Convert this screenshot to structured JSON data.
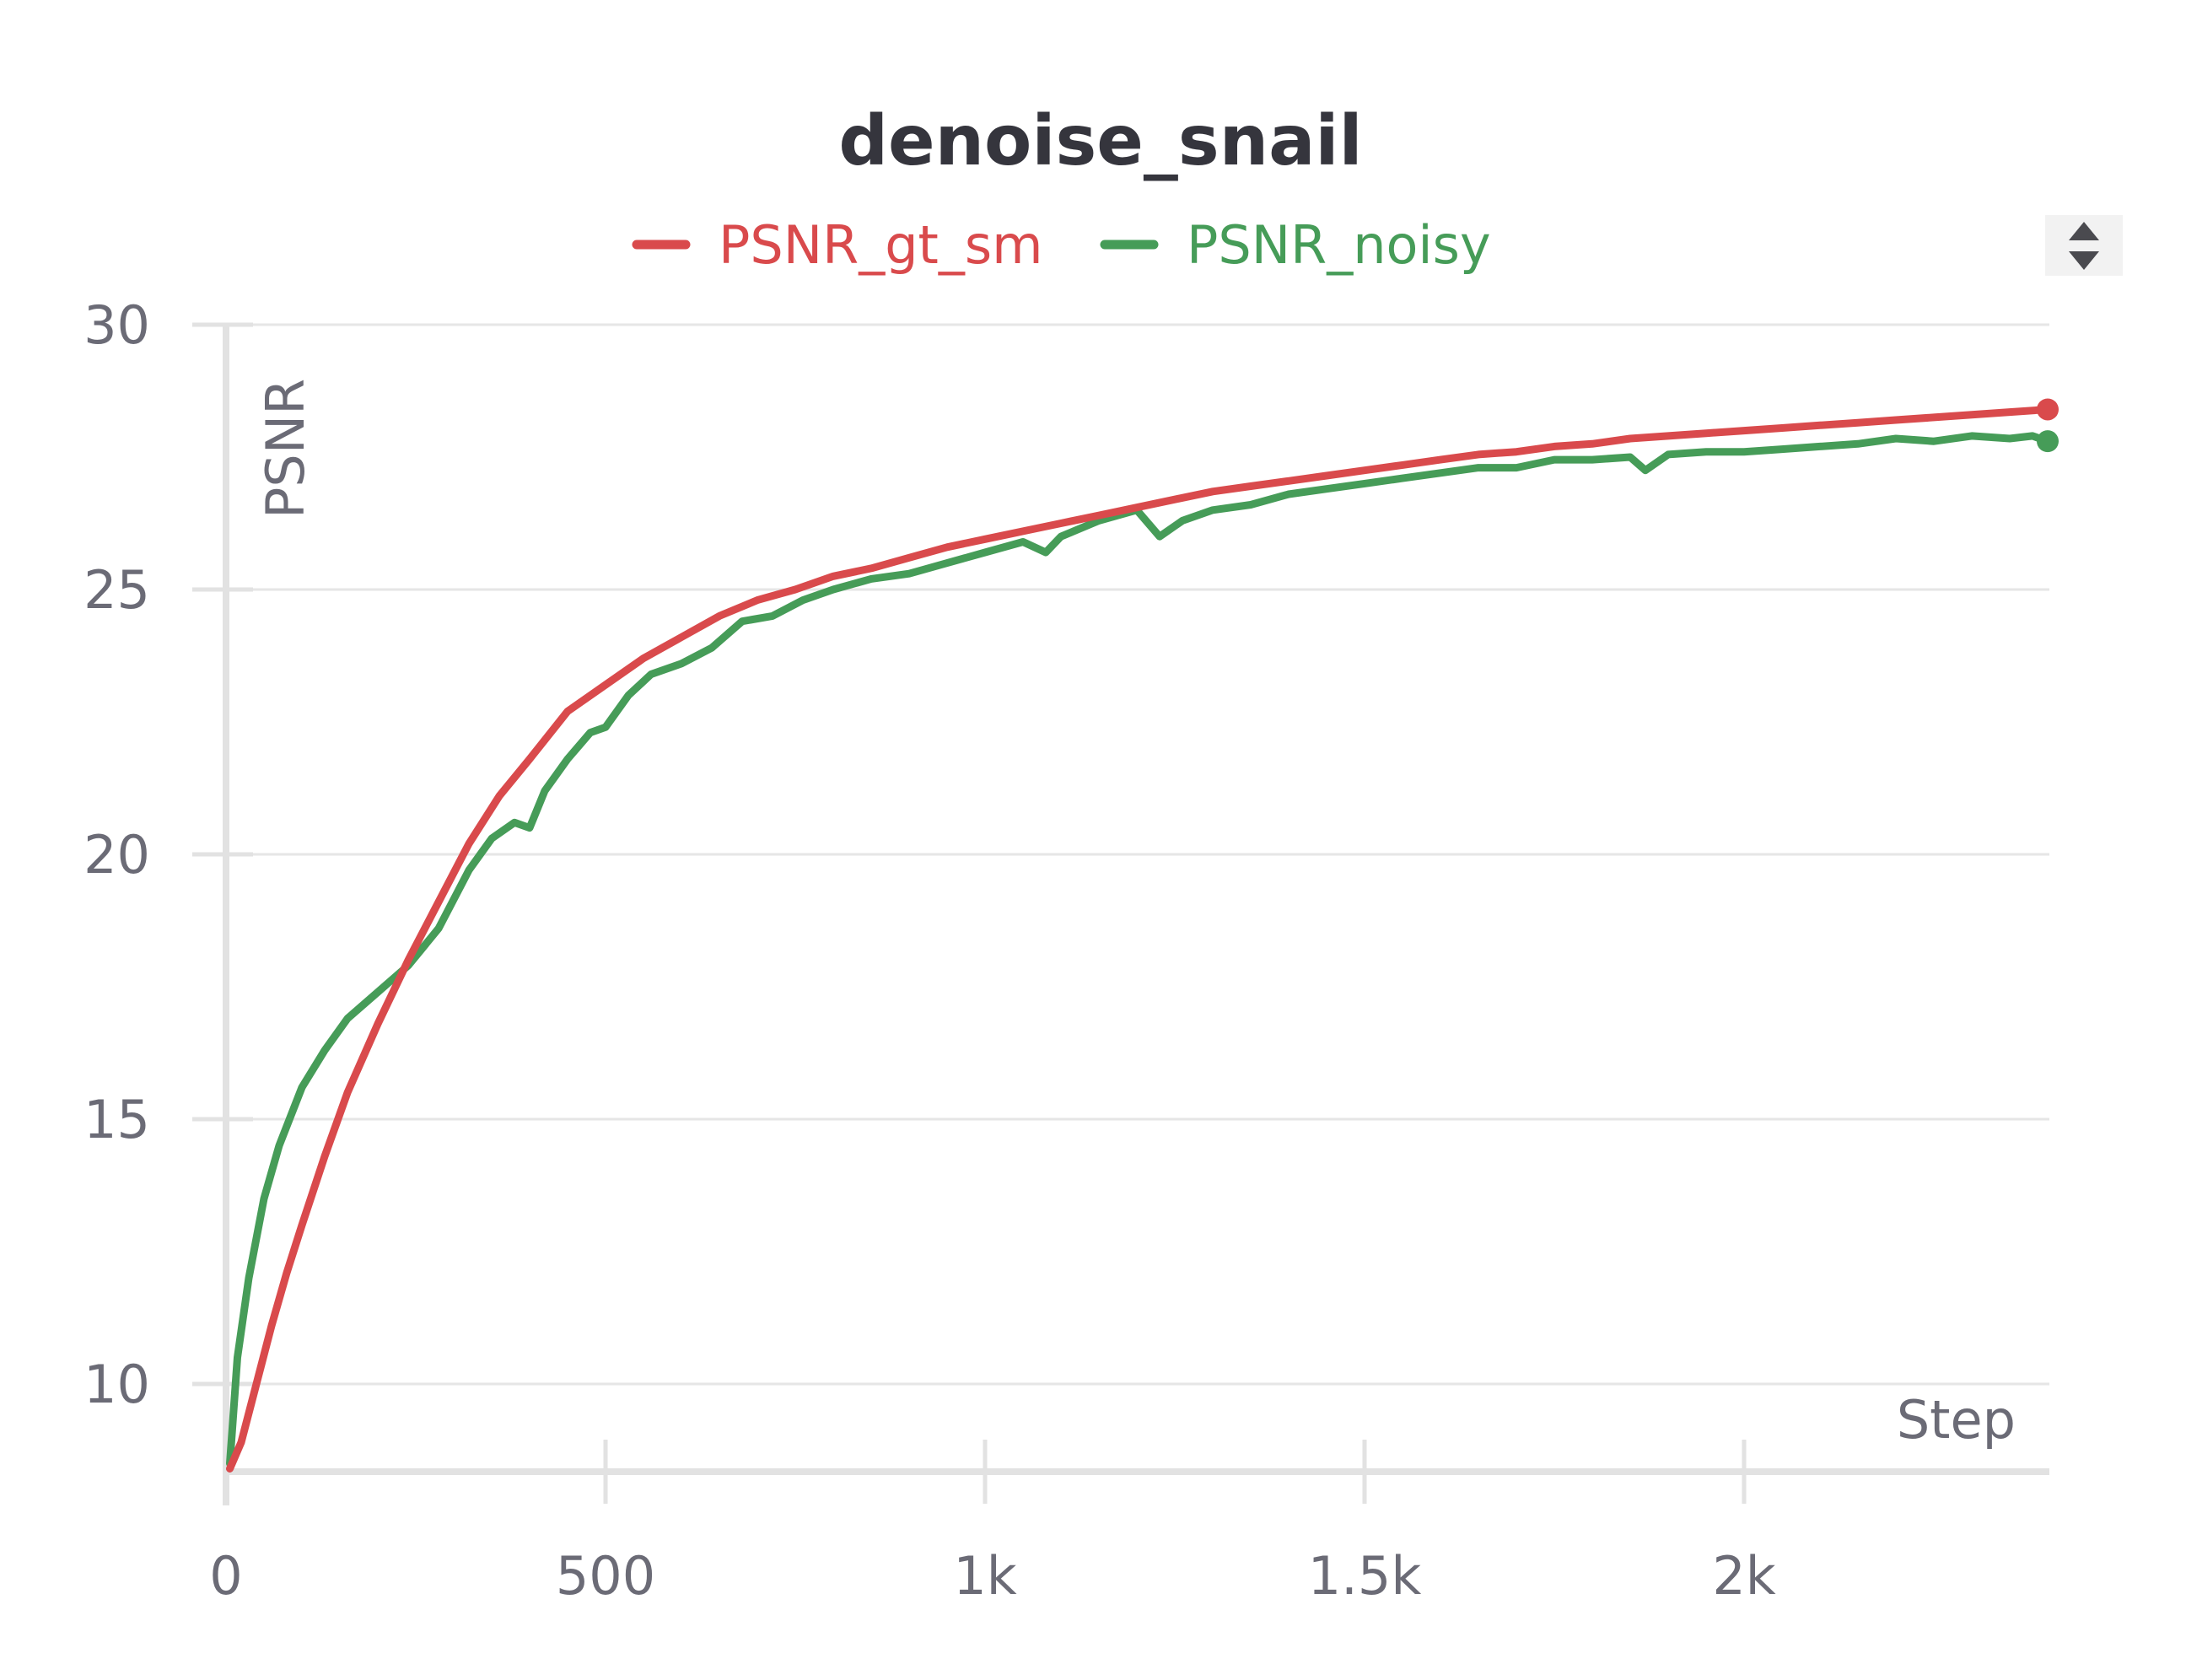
{
  "chart_data": {
    "type": "line",
    "title": "denoise_snail",
    "xlabel": "Step",
    "ylabel": "PSNR",
    "xlim": [
      0,
      2400
    ],
    "ylim": [
      8.3,
      30
    ],
    "x_ticks": [
      {
        "value": 0,
        "label": "0"
      },
      {
        "value": 500,
        "label": "500"
      },
      {
        "value": 1000,
        "label": "1k"
      },
      {
        "value": 1500,
        "label": "1.5k"
      },
      {
        "value": 2000,
        "label": "2k"
      }
    ],
    "y_ticks": [
      {
        "value": 10,
        "label": "10"
      },
      {
        "value": 15,
        "label": "15"
      },
      {
        "value": 20,
        "label": "20"
      },
      {
        "value": 25,
        "label": "25"
      },
      {
        "value": 30,
        "label": "30"
      }
    ],
    "grid": "horizontal",
    "legend_position": "top-center",
    "series": [
      {
        "name": "PSNR_gt_sm",
        "color": "#d94a4c",
        "x": [
          5,
          20,
          40,
          60,
          80,
          100,
          130,
          160,
          200,
          240,
          280,
          320,
          360,
          400,
          450,
          500,
          550,
          600,
          650,
          700,
          750,
          800,
          850,
          900,
          950,
          1000,
          1050,
          1100,
          1150,
          1200,
          1250,
          1300,
          1350,
          1400,
          1450,
          1500,
          1550,
          1600,
          1650,
          1700,
          1750,
          1800,
          1850,
          1900,
          1950,
          2000,
          2050,
          2100,
          2150,
          2200,
          2250,
          2300,
          2350,
          2400
        ],
        "y": [
          8.4,
          8.9,
          10.0,
          11.1,
          12.1,
          13.0,
          14.3,
          15.5,
          16.8,
          18.0,
          19.1,
          20.2,
          21.1,
          21.8,
          22.7,
          23.2,
          23.7,
          24.1,
          24.5,
          24.8,
          25.0,
          25.25,
          25.4,
          25.6,
          25.8,
          25.95,
          26.1,
          26.25,
          26.4,
          26.55,
          26.7,
          26.85,
          26.95,
          27.05,
          27.15,
          27.25,
          27.35,
          27.45,
          27.55,
          27.6,
          27.7,
          27.75,
          27.85,
          27.9,
          27.95,
          28.0,
          28.05,
          28.1,
          28.15,
          28.2,
          28.25,
          28.3,
          28.35,
          28.4
        ]
      },
      {
        "name": "PSNR_noisy",
        "color": "#469c58",
        "x": [
          5,
          15,
          30,
          50,
          70,
          100,
          130,
          160,
          200,
          240,
          280,
          320,
          350,
          380,
          400,
          420,
          450,
          480,
          500,
          530,
          560,
          600,
          640,
          680,
          720,
          760,
          800,
          850,
          900,
          950,
          1000,
          1050,
          1080,
          1100,
          1150,
          1200,
          1230,
          1260,
          1300,
          1350,
          1400,
          1450,
          1500,
          1550,
          1600,
          1650,
          1700,
          1750,
          1800,
          1850,
          1870,
          1900,
          1950,
          2000,
          2050,
          2100,
          2150,
          2200,
          2250,
          2300,
          2350,
          2380,
          2400
        ],
        "y": [
          8.5,
          10.5,
          12.0,
          13.5,
          14.5,
          15.6,
          16.3,
          16.9,
          17.4,
          17.9,
          18.6,
          19.7,
          20.3,
          20.6,
          20.5,
          21.2,
          21.8,
          22.3,
          22.4,
          23.0,
          23.4,
          23.6,
          23.9,
          24.4,
          24.5,
          24.8,
          25.0,
          25.2,
          25.3,
          25.5,
          25.7,
          25.9,
          25.7,
          26.0,
          26.3,
          26.5,
          26.0,
          26.3,
          26.5,
          26.6,
          26.8,
          26.9,
          27.0,
          27.1,
          27.2,
          27.3,
          27.3,
          27.45,
          27.45,
          27.5,
          27.25,
          27.55,
          27.6,
          27.6,
          27.65,
          27.7,
          27.75,
          27.85,
          27.8,
          27.9,
          27.85,
          27.9,
          27.8
        ]
      }
    ]
  }
}
